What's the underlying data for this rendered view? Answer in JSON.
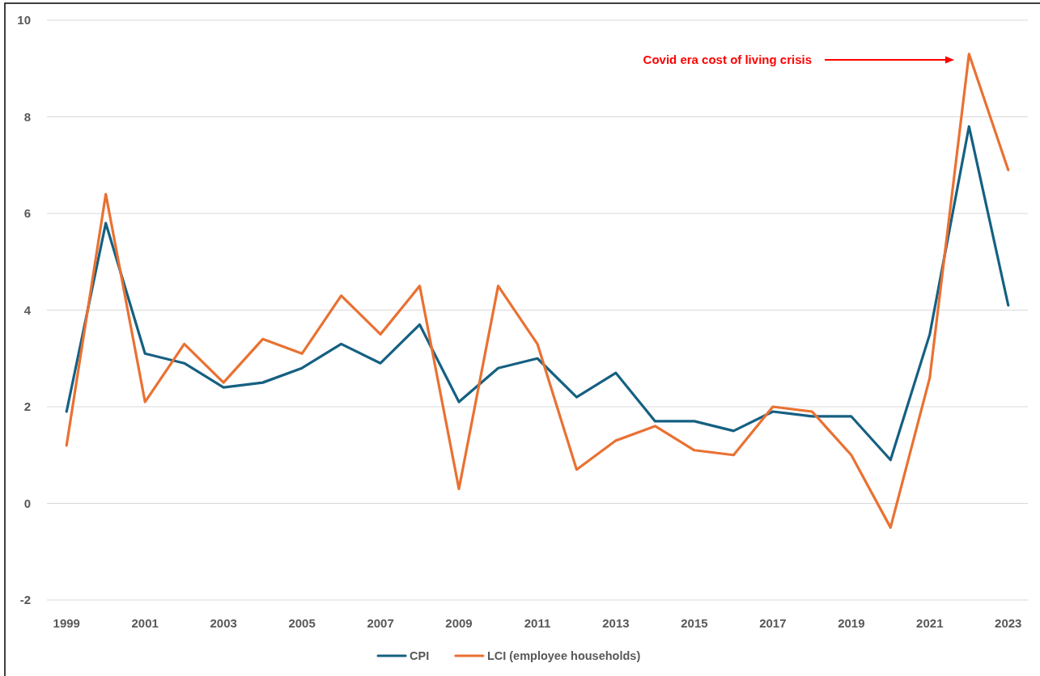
{
  "chart_data": {
    "type": "line",
    "x": [
      1999,
      2000,
      2001,
      2002,
      2003,
      2004,
      2005,
      2006,
      2007,
      2008,
      2009,
      2010,
      2011,
      2012,
      2013,
      2014,
      2015,
      2016,
      2017,
      2018,
      2019,
      2020,
      2021,
      2022,
      2023
    ],
    "series": [
      {
        "name": "CPI",
        "color": "#156082",
        "values": [
          1.9,
          5.8,
          3.1,
          2.9,
          2.4,
          2.5,
          2.8,
          3.3,
          2.9,
          3.7,
          2.1,
          2.8,
          3.0,
          2.2,
          2.7,
          1.7,
          1.7,
          1.5,
          1.9,
          1.8,
          1.8,
          0.9,
          3.5,
          7.8,
          4.1
        ]
      },
      {
        "name": "LCI (employee households)",
        "color": "#e97132",
        "values": [
          1.2,
          6.4,
          2.1,
          3.3,
          2.5,
          3.4,
          3.1,
          4.3,
          3.5,
          4.5,
          0.3,
          4.5,
          3.3,
          0.7,
          1.3,
          1.6,
          1.1,
          1.0,
          2.0,
          1.9,
          1.0,
          -0.5,
          2.6,
          9.3,
          6.9
        ]
      }
    ],
    "xlim": [
      1998.5,
      2023.5
    ],
    "xticks": [
      1999,
      2001,
      2003,
      2005,
      2007,
      2009,
      2011,
      2013,
      2015,
      2017,
      2019,
      2021,
      2023
    ],
    "ylim": [
      -2,
      10
    ],
    "yticks": [
      -2,
      0,
      2,
      4,
      6,
      8,
      10
    ],
    "grid": "y",
    "legend": "bottom",
    "annotations": [
      "Covid era cost of living crisis"
    ]
  }
}
